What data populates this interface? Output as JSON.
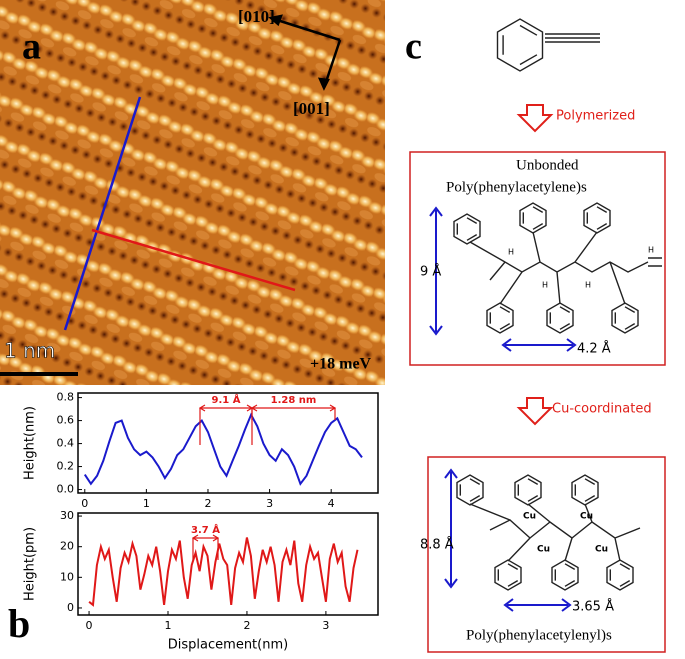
{
  "panel_a": {
    "label": "a",
    "direction_1": "[010]",
    "direction_2": "[001]",
    "scale_bar": "1 nm",
    "bias": "+18 meV"
  },
  "panel_b": {
    "label": "b"
  },
  "chart_data": [
    {
      "type": "line",
      "y_label": "Height(nm)",
      "x": [
        0,
        0.1,
        0.2,
        0.3,
        0.4,
        0.5,
        0.6,
        0.7,
        0.8,
        0.9,
        1.0,
        1.1,
        1.2,
        1.3,
        1.4,
        1.5,
        1.6,
        1.7,
        1.8,
        1.9,
        2.0,
        2.1,
        2.2,
        2.3,
        2.4,
        2.5,
        2.6,
        2.7,
        2.8,
        2.9,
        3.0,
        3.1,
        3.2,
        3.3,
        3.4,
        3.5,
        3.6,
        3.7,
        3.8,
        3.9,
        4.0,
        4.1,
        4.2,
        4.3,
        4.4,
        4.5
      ],
      "series": [
        {
          "color": "#1a1acc",
          "values": [
            0.13,
            0.05,
            0.12,
            0.25,
            0.42,
            0.58,
            0.6,
            0.45,
            0.35,
            0.3,
            0.33,
            0.28,
            0.2,
            0.1,
            0.18,
            0.3,
            0.35,
            0.45,
            0.55,
            0.6,
            0.5,
            0.35,
            0.2,
            0.12,
            0.25,
            0.38,
            0.52,
            0.65,
            0.55,
            0.4,
            0.3,
            0.25,
            0.35,
            0.3,
            0.2,
            0.05,
            0.12,
            0.25,
            0.38,
            0.5,
            0.58,
            0.62,
            0.5,
            0.38,
            0.35,
            0.28
          ]
        }
      ],
      "xlim": [
        -0.11,
        4.76
      ],
      "ylim": [
        -0.03,
        0.84
      ],
      "xticks": [
        0,
        1,
        2,
        3,
        4
      ],
      "yticks": [
        {
          "value": 0,
          "label": "0.0"
        },
        0.2,
        0.4,
        0.6,
        0.8
      ],
      "annotations": [
        "9.1 Å",
        "1.28 nm"
      ]
    },
    {
      "type": "line",
      "y_label": "Height(pm)",
      "x_label": "Displacement(nm)",
      "x": [
        0,
        0.05,
        0.1,
        0.15,
        0.2,
        0.25,
        0.3,
        0.35,
        0.4,
        0.45,
        0.5,
        0.55,
        0.6,
        0.65,
        0.7,
        0.75,
        0.8,
        0.85,
        0.9,
        0.95,
        1.0,
        1.05,
        1.1,
        1.15,
        1.2,
        1.25,
        1.3,
        1.35,
        1.4,
        1.45,
        1.5,
        1.55,
        1.6,
        1.65,
        1.7,
        1.75,
        1.8,
        1.85,
        1.9,
        1.95,
        2.0,
        2.05,
        2.1,
        2.15,
        2.2,
        2.25,
        2.3,
        2.35,
        2.4,
        2.45,
        2.5,
        2.55,
        2.6,
        2.65,
        2.7,
        2.75,
        2.8,
        2.85,
        2.9,
        2.95,
        3.0,
        3.05,
        3.1,
        3.15,
        3.2,
        3.25,
        3.3,
        3.35,
        3.4
      ],
      "series": [
        {
          "color": "#e01818",
          "values": [
            2,
            1,
            14,
            20,
            16,
            19,
            10,
            2,
            13,
            18,
            15,
            21,
            17,
            6,
            11,
            17,
            14,
            20,
            12,
            1,
            12,
            19,
            16,
            22,
            10,
            3,
            14,
            18,
            12,
            20,
            17,
            6,
            15,
            21,
            16,
            14,
            1,
            13,
            18,
            15,
            23,
            17,
            3,
            12,
            19,
            15,
            20,
            14,
            2,
            15,
            19,
            14,
            22,
            8,
            2,
            14,
            20,
            16,
            18,
            10,
            2,
            16,
            21,
            15,
            18,
            7,
            2,
            13,
            19
          ]
        }
      ],
      "xlim": [
        -0.14,
        3.66
      ],
      "ylim": [
        -2.3,
        31
      ],
      "xticks": [
        0,
        1,
        2,
        3
      ],
      "yticks": [
        0,
        10,
        20,
        30
      ],
      "annotations": [
        "3.7 Å"
      ]
    }
  ],
  "panel_c": {
    "label": "c",
    "step_1": "Polymerized",
    "box_1_title_1": "Unbonded",
    "box_1_title_2": "Poly(phenylacetylene)s",
    "box_1_height": "9 Å",
    "box_1_spacing": "4.2 Å",
    "box_1_atoms": [
      "H",
      "H",
      "H",
      "H"
    ],
    "step_2": "Cu-coordinated",
    "box_2_height": "8.8 Å",
    "box_2_spacing": "3.65 Å",
    "box_2_atoms": [
      "Cu",
      "Cu",
      "Cu",
      "Cu"
    ],
    "box_2_title": "Poly(phenylacetylenyl)s"
  }
}
